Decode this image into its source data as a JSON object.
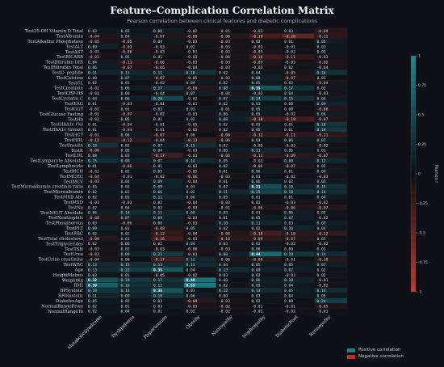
{
  "chart_data": {
    "type": "heatmap",
    "title": "Feature–Complication Correlation Matrix",
    "subtitle": "Pearson correlation between clinical features and diabetic complications",
    "rows": [
      "Test25-OH Vitamin D Total",
      "TestAlbumin",
      "TestAlkaline Phosphatase",
      "TestALT",
      "TestAST",
      "TestBICARB",
      "TestBilirubin DIR",
      "TestBilirubin Total",
      "TestC- peptide",
      "TestCalcium",
      "TestCL",
      "TestCreatinin",
      "TestCRP-HS",
      "TestCystatin C",
      "TestEAG",
      "TestGGT",
      "TestGlucose Fasting",
      "TestHb",
      "TestHbA1c (%)",
      "TestHbA1c (mmol)",
      "TestHCT",
      "TestHDL",
      "TestInsulin",
      "TestK",
      "TestLDL",
      "TestLympacyte Absolute",
      "TestLymphocyte",
      "TestMCH",
      "TestMCHC",
      "TestMCV",
      "TestMicroalbumin creatinin ratio",
      "TestMicroalbumin",
      "TestMXD Abs",
      "TestMXD",
      "TestNa",
      "TestNEUT Absolute",
      "TestNeutrophils",
      "TestPhosphorous",
      "TestPLT",
      "TestRBC",
      "TestTotal cholesterol",
      "TestTriglycerides",
      "TestTSH",
      "TestUrea",
      "TestUrine creatinine",
      "TestWBC",
      "Age",
      "HeightMetres",
      "WeightKg",
      "BMI",
      "BPSystolic",
      "BPDiastolic",
      "DiabetesAge",
      "NormalRangeFrom",
      "NormalRangeTo"
    ],
    "columns": [
      "MetabolicSyndrome",
      "Dyslipidemia",
      "Hypertension",
      "Obesity",
      "Neuropathy",
      "Nephropathy",
      "DiabeticFoot",
      "Retinopathy"
    ],
    "values": [
      [
        0.03,
        0.03,
        0.06,
        -0.02,
        -0.01,
        -0.03,
        0.03,
        -0.09
      ],
      [
        -0.04,
        0.04,
        -0.07,
        -0.08,
        -0.08,
        -0.19,
        -0.28,
        -0.11
      ],
      [
        -0.05,
        -0.05,
        0.04,
        -0.03,
        -0.03,
        0.02,
        0.01,
        0.05
      ],
      [
        0.09,
        -0.03,
        -0.03,
        0.02,
        -0.03,
        -0.03,
        -0.01,
        0.03
      ],
      [
        -0.01,
        -0.06,
        -0.03,
        -0.01,
        -0.03,
        -0.05,
        -0.02,
        0.03
      ],
      [
        -0.03,
        0.05,
        0.01,
        -0.03,
        -0.04,
        -0.16,
        -0.11,
        -0.03
      ],
      [
        0.04,
        -0.11,
        -0.06,
        -0.03,
        -0.03,
        -0.07,
        -0.03,
        -0.05
      ],
      [
        0.06,
        -0.07,
        -0.06,
        -0.04,
        -0.03,
        -0.03,
        0.02,
        -0.04
      ],
      [
        0.11,
        0.11,
        0.11,
        0.18,
        0.02,
        0.04,
        -0.05,
        0.16
      ],
      [
        0.0,
        0.07,
        -0.07,
        -0.05,
        -0.03,
        0.08,
        -0.07,
        0.01
      ],
      [
        0.02,
        0.01,
        -0.02,
        0.04,
        0.02,
        0.05,
        0.02,
        -0.04
      ],
      [
        -0.02,
        0.06,
        0.17,
        -0.08,
        0.08,
        0.35,
        0.17,
        0.03
      ],
      [
        -0.01,
        0.0,
        -0.04,
        0.07,
        -0.04,
        -0.03,
        0.04,
        -0.03
      ],
      [
        0.04,
        0.06,
        0.28,
        -0.02,
        0.07,
        0.24,
        0.15,
        0.06
      ],
      [
        0.01,
        -0.03,
        -0.01,
        -0.01,
        0.02,
        0.03,
        0.0,
        0.09
      ],
      [
        -0.02,
        0.01,
        0.03,
        0.03,
        -0.01,
        0.05,
        0.0,
        -0.08
      ],
      [
        -0.01,
        -0.07,
        -0.02,
        -0.03,
        0.06,
        0.05,
        -0.02,
        0.06
      ],
      [
        -0.02,
        0.05,
        0.01,
        0.02,
        0.08,
        -0.18,
        -0.18,
        -0.07
      ],
      [
        0.01,
        -0.04,
        -0.01,
        -0.05,
        0.02,
        0.05,
        0.01,
        0.18
      ],
      [
        0.01,
        -0.04,
        -0.01,
        -0.05,
        0.02,
        0.05,
        0.01,
        0.19
      ],
      [
        -0.01,
        0.06,
        -0.07,
        0.0,
        -0.08,
        -0.12,
        -0.11,
        -0.11
      ],
      [
        -0.11,
        -0.12,
        -0.04,
        -0.13,
        -0.06,
        0.03,
        0.06,
        0.07
      ],
      [
        0.18,
        0.02,
        0.07,
        0.15,
        0.02,
        -0.02,
        -0.03,
        -0.02
      ],
      [
        -0.08,
        0.05,
        0.04,
        -0.03,
        0.06,
        0.11,
        0.05,
        0.01
      ],
      [
        0.08,
        0.03,
        -0.17,
        -0.03,
        -0.06,
        -0.11,
        -0.09,
        -0.07
      ],
      [
        0.15,
        0.09,
        0.07,
        0.14,
        0.05,
        -0.01,
        0.08,
        0.12
      ],
      [
        0.01,
        -0.06,
        0.01,
        -0.01,
        0.02,
        -0.06,
        -0.07,
        0.02
      ],
      [
        -0.02,
        0.02,
        0.05,
        -0.05,
        0.01,
        0.06,
        0.01,
        0.04
      ],
      [
        -0.04,
        -0.01,
        -0.02,
        -0.06,
        -0.03,
        0.01,
        -0.02,
        -0.03
      ],
      [
        -0.03,
        0.04,
        0.09,
        -0.04,
        0.01,
        0.06,
        0.02,
        0.05
      ],
      [
        0.03,
        0.02,
        0.09,
        0.03,
        0.02,
        0.31,
        0.1,
        0.15
      ],
      [
        0.02,
        0.02,
        0.06,
        0.02,
        0.11,
        0.25,
        0.18,
        0.14
      ],
      [
        0.02,
        0.05,
        0.11,
        0.06,
        0.05,
        0.01,
        0.01,
        0.04
      ],
      [
        -0.03,
        -0.03,
        0.02,
        -0.04,
        -0.03,
        0.02,
        -0.03,
        -0.02
      ],
      [
        0.02,
        0.04,
        0.02,
        -0.03,
        -0.01,
        -0.06,
        -0.06,
        -0.07
      ],
      [
        0.06,
        0.14,
        0.11,
        0.09,
        0.03,
        0.01,
        0.06,
        0.02
      ],
      [
        -0.08,
        0.07,
        0.09,
        -0.03,
        0.01,
        0.05,
        0.07,
        -0.02
      ],
      [
        0.03,
        -0.06,
        0.06,
        -0.03,
        0.1,
        0.11,
        0.03,
        0.07
      ],
      [
        0.09,
        0.01,
        -0.08,
        0.05,
        0.02,
        0.02,
        0.1,
        0.04
      ],
      [
        0.02,
        0.02,
        -0.12,
        -0.04,
        -0.08,
        -0.18,
        -0.1,
        -0.12
      ],
      [
        -0.08,
        0.03,
        -0.16,
        -0.03,
        -0.1,
        -0.09,
        -0.07,
        0.02
      ],
      [
        0.02,
        0.06,
        0.02,
        0.04,
        0.03,
        0.02,
        -0.02,
        -0.02
      ],
      [
        -0.03,
        0.02,
        -0.03,
        -0.06,
        -0.03,
        0.06,
        0.0,
        0.01
      ],
      [
        -0.03,
        0.09,
        0.21,
        -0.03,
        0.08,
        0.44,
        0.18,
        0.14
      ],
      [
        -0.04,
        0.0,
        -0.17,
        0.12,
        -0.06,
        -0.09,
        -0.01,
        -0.1
      ],
      [
        0.13,
        0.15,
        0.13,
        0.13,
        0.04,
        0.05,
        0.05,
        0.07
      ],
      [
        0.13,
        0.22,
        0.35,
        0.04,
        0.13,
        0.09,
        0.07,
        0.02
      ],
      [
        0.03,
        0.01,
        -0.05,
        -0.02,
        0.03,
        0.02,
        -0.02,
        0.02
      ],
      [
        0.32,
        0.19,
        0.17,
        0.49,
        0.0,
        0.06,
        0.1,
        -0.01
      ],
      [
        0.39,
        0.16,
        0.12,
        0.53,
        0.02,
        0.05,
        0.04,
        -0.02
      ],
      [
        0.19,
        0.14,
        0.35,
        0.03,
        0.12,
        0.14,
        0.05,
        0.14
      ],
      [
        0.11,
        0.09,
        0.18,
        0.06,
        0.0,
        0.03,
        0.04,
        0.05
      ],
      [
        0.05,
        0.03,
        0.03,
        -0.09,
        -0.03,
        0.02,
        0.0,
        0.24
      ],
      [
        0.02,
        0.01,
        0.03,
        -0.03,
        -0.02,
        -0.01,
        -0.01,
        -0.05
      ],
      [
        0.02,
        0.04,
        0.01,
        0.02,
        -0.02,
        -0.01,
        -0.02,
        -0.01
      ]
    ],
    "colorbar": {
      "label": "Pearson r",
      "range": [
        -1,
        1
      ],
      "ticks": [
        "1",
        "0.75",
        "0.5",
        "0.25",
        "0",
        "-0.25",
        "-0.5",
        "-0.75",
        "-1"
      ]
    },
    "legend": [
      {
        "label": "Positive correlation",
        "color": "#1f7f86"
      },
      {
        "label": "Negative correlation",
        "color": "#c0302a"
      }
    ],
    "legend_position": "bottom-right",
    "colors": {
      "positive": "#1f8a92",
      "negative": "#c43a32",
      "background": "#0f1116"
    }
  }
}
